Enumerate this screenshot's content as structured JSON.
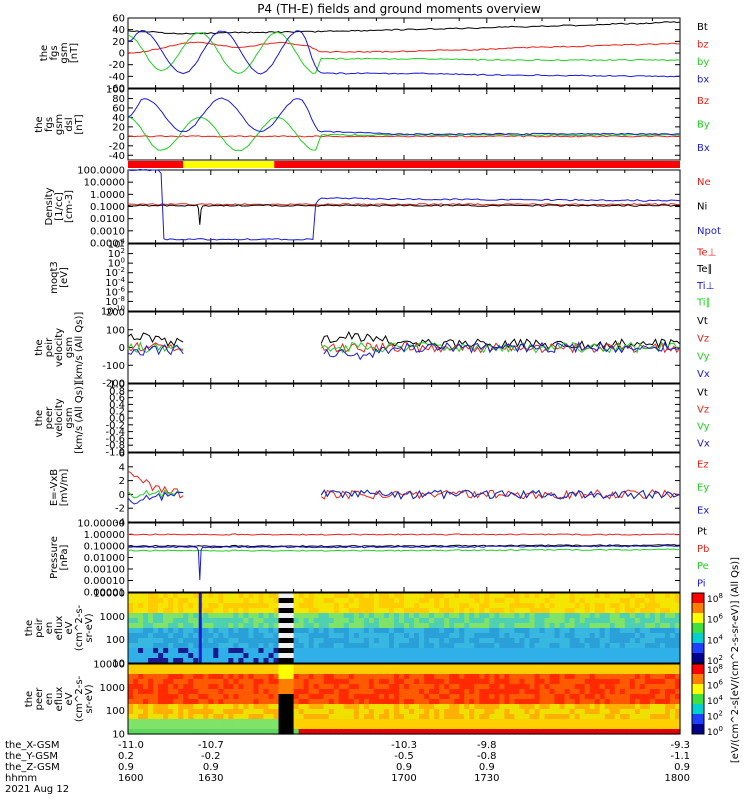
{
  "title": "P4 (TH-E) fields and ground moments overview",
  "colors": {
    "black": "#000000",
    "red": "#e8231b",
    "green": "#22d022",
    "blue": "#1a1ad6",
    "bar_red": "#ff0000",
    "bar_yellow": "#ffff00"
  },
  "chart_data": [
    {
      "type": "line",
      "panel": "fgs-gsm",
      "ylabel": [
        "the",
        "fgs",
        "gsm",
        "[nT]"
      ],
      "ylim": [
        -60,
        60
      ],
      "yticks": [
        60,
        40,
        20,
        0,
        -20,
        -40,
        -60
      ],
      "series": [
        {
          "name": "Bt",
          "color": "#000000",
          "x": [
            1600,
            1620,
            1640,
            1660,
            1680,
            1700,
            1720,
            1740,
            1760,
            1780,
            1800
          ],
          "values": [
            38,
            33,
            35,
            36,
            38,
            40,
            42,
            45,
            47,
            50,
            53
          ]
        },
        {
          "name": "bz",
          "color": "#e8231b",
          "x": [
            1600,
            1625,
            1640,
            1655,
            1665,
            1670,
            1690,
            1720,
            1750,
            1780,
            1800
          ],
          "values": [
            0,
            18,
            10,
            18,
            12,
            2,
            2,
            5,
            10,
            14,
            16
          ]
        },
        {
          "name": "by",
          "color": "#22d022",
          "x": [
            1600,
            1612,
            1626,
            1640,
            1654,
            1668,
            1670,
            1700,
            1740,
            1800
          ],
          "values": [
            30,
            -30,
            35,
            -35,
            35,
            -35,
            -10,
            -10,
            -12,
            -12
          ]
        },
        {
          "name": "bx",
          "color": "#1a1ad6",
          "x": [
            1600,
            1605,
            1620,
            1634,
            1648,
            1662,
            1670,
            1700,
            1740,
            1800
          ],
          "values": [
            20,
            38,
            -35,
            38,
            -35,
            38,
            -35,
            -35,
            -38,
            -40
          ]
        }
      ]
    },
    {
      "type": "line",
      "panel": "fgs-gsm-dsl",
      "ylabel": [
        "the",
        "fgs",
        "gsm",
        "dsl",
        "[nT]"
      ],
      "ylim": [
        -50,
        100
      ],
      "yticks": [
        100,
        80,
        60,
        40,
        20,
        0,
        -20,
        -40
      ],
      "series": [
        {
          "name": "Bz",
          "color": "#e8231b",
          "x": [
            1600,
            1800
          ],
          "values": [
            0,
            0
          ]
        },
        {
          "name": "By",
          "color": "#22d022",
          "x": [
            1600,
            1612,
            1626,
            1640,
            1654,
            1668,
            1670,
            1800
          ],
          "values": [
            40,
            -30,
            40,
            -30,
            40,
            -30,
            3,
            3
          ]
        },
        {
          "name": "Bx",
          "color": "#1a1ad6",
          "x": [
            1600,
            1606,
            1620,
            1634,
            1648,
            1662,
            1670,
            1700,
            1800
          ],
          "values": [
            40,
            80,
            10,
            80,
            10,
            80,
            10,
            5,
            5
          ]
        }
      ]
    },
    {
      "type": "bar",
      "panel": "mode-bar",
      "segments": [
        {
          "x": [
            1600,
            1620
          ],
          "color": "#ff0000"
        },
        {
          "x": [
            1620,
            1653
          ],
          "color": "#ffff00"
        },
        {
          "x": [
            1653,
            1800
          ],
          "color": "#ff0000"
        }
      ]
    },
    {
      "type": "line",
      "panel": "density",
      "ylabel": [
        "Density",
        "[1/cc]",
        "[cm-3]"
      ],
      "yscale": "log",
      "ylim": [
        0.0001,
        100
      ],
      "yticks": [
        "100.0000",
        "10.0000",
        "1.0000",
        "0.1000",
        "0.0100",
        "0.0010",
        "0.0001"
      ],
      "series": [
        {
          "name": "Ne",
          "color": "#e8231b",
          "x": [
            1600,
            1650,
            1700,
            1750,
            1800
          ],
          "values": [
            0.15,
            0.15,
            0.15,
            0.15,
            0.15
          ]
        },
        {
          "name": "Ni",
          "color": "#000000",
          "x": [
            1600,
            1625,
            1626,
            1627,
            1650,
            1700,
            1750,
            1800
          ],
          "values": [
            0.12,
            0.12,
            0.003,
            0.12,
            0.12,
            0.12,
            0.12,
            0.12
          ]
        },
        {
          "name": "Npot",
          "color": "#1a1ad6",
          "x": [
            1600,
            1611,
            1613,
            1650,
            1667,
            1670,
            1700,
            1800
          ],
          "values": [
            100,
            100,
            0.0002,
            0.0002,
            0.0002,
            0.5,
            0.4,
            0.3
          ]
        }
      ]
    },
    {
      "type": "line",
      "panel": "moqt3",
      "ylabel": [
        "moqt3",
        "[eV]"
      ],
      "yscale": "log",
      "yticks": [
        "10^4",
        "10^2",
        "10^0",
        "10^-2",
        "10^-4",
        "10^-6",
        "10^-8",
        "10^-10"
      ],
      "series": [
        {
          "name": "Te⊥",
          "color": "#e8231b"
        },
        {
          "name": "Te∥",
          "color": "#000000"
        },
        {
          "name": "Ti⊥",
          "color": "#1a1ad6"
        },
        {
          "name": "Ti∥",
          "color": "#22d022"
        }
      ]
    },
    {
      "type": "line",
      "panel": "peir-velocity",
      "ylabel": [
        "the",
        "peir",
        "velocity",
        "gsm",
        "[km/s (All Qs)]"
      ],
      "ylim": [
        -200,
        200
      ],
      "yticks": [
        200,
        100,
        0,
        -100,
        -200
      ],
      "series": [
        {
          "name": "Vt",
          "color": "#000000",
          "x": [
            1600,
            1610,
            1620,
            1660,
            1680,
            1700,
            1750,
            1800
          ],
          "values": [
            80,
            40,
            20,
            20,
            70,
            20,
            20,
            20
          ]
        },
        {
          "name": "Vz",
          "color": "#e8231b",
          "x": [
            1600,
            1620,
            1660,
            1700,
            1800
          ],
          "values": [
            10,
            0,
            0,
            0,
            0
          ]
        },
        {
          "name": "Vy",
          "color": "#22d022",
          "x": [
            1600,
            1620,
            1660,
            1800
          ],
          "values": [
            0,
            0,
            0,
            0
          ]
        },
        {
          "name": "Vx",
          "color": "#1a1ad6",
          "x": [
            1600,
            1620,
            1660,
            1683,
            1700,
            1800
          ],
          "values": [
            -20,
            -10,
            0,
            -50,
            0,
            0
          ]
        }
      ]
    },
    {
      "type": "line",
      "panel": "peer-velocity",
      "ylabel": [
        "the",
        "peer",
        "velocity",
        "gsm",
        "[km/s (All Qs)]"
      ],
      "ylim": [
        -1.0,
        1.0
      ],
      "yticks": [
        "1.0",
        "0.8",
        "0.6",
        "0.4",
        "0.2",
        "0.0",
        "-0.2",
        "-0.4",
        "-0.6",
        "-0.8",
        "-1.0"
      ],
      "series": [
        {
          "name": "Vt",
          "color": "#000000"
        },
        {
          "name": "Vz",
          "color": "#e8231b"
        },
        {
          "name": "Vy",
          "color": "#22d022"
        },
        {
          "name": "Vx",
          "color": "#1a1ad6"
        }
      ]
    },
    {
      "type": "line",
      "panel": "e-field",
      "ylabel": [
        "E=-VxB",
        "[mV/m]"
      ],
      "ylim": [
        -4,
        6
      ],
      "yticks": [
        6,
        4,
        2,
        0,
        -2,
        -4
      ],
      "series": [
        {
          "name": "Ez",
          "color": "#e8231b",
          "x": [
            1600,
            1610,
            1620,
            1660,
            1700,
            1800
          ],
          "values": [
            3,
            1,
            0,
            0,
            0,
            0
          ]
        },
        {
          "name": "Ey",
          "color": "#22d022",
          "x": [
            1600,
            1620,
            1660,
            1800
          ],
          "values": [
            0,
            0,
            0,
            0
          ]
        },
        {
          "name": "Ex",
          "color": "#1a1ad6",
          "x": [
            1600,
            1620,
            1660,
            1800
          ],
          "values": [
            -1,
            0,
            0,
            0
          ]
        }
      ]
    },
    {
      "type": "line",
      "panel": "pressure",
      "ylabel": [
        "Pressure",
        "[nPa]"
      ],
      "yscale": "log",
      "yticks": [
        "10.00000",
        "1.00000",
        "0.10000",
        "0.01000",
        "0.00100",
        "0.00010",
        "0.00001"
      ],
      "series": [
        {
          "name": "Pt",
          "color": "#000000",
          "x": [
            1600,
            1700,
            1800
          ],
          "values": [
            0.1,
            0.1,
            0.12
          ]
        },
        {
          "name": "Pb",
          "color": "#e8231b",
          "x": [
            1600,
            1700,
            1800
          ],
          "values": [
            1,
            1,
            1
          ]
        },
        {
          "name": "Pe",
          "color": "#22d022",
          "x": [
            1600,
            1700,
            1800
          ],
          "values": [
            0.04,
            0.04,
            0.05
          ]
        },
        {
          "name": "Pi",
          "color": "#1a1ad6",
          "x": [
            1600,
            1625,
            1626,
            1627,
            1700,
            1800
          ],
          "values": [
            0.08,
            0.08,
            0.0001,
            0.08,
            0.08,
            0.1
          ]
        }
      ]
    },
    {
      "type": "heatmap",
      "panel": "peir-eflux",
      "ylabel": [
        "the",
        "peir",
        "en",
        "eflux",
        "eV",
        "(cm^2-s-",
        "sr-eV)"
      ],
      "yscale": "log",
      "yticks": [
        "10000",
        "1000",
        "100",
        "10"
      ]
    },
    {
      "type": "heatmap",
      "panel": "peer-eflux",
      "ylabel": [
        "the",
        "peer",
        "en",
        "eflux",
        "eV",
        "(cm^2-s-",
        "sr-eV)"
      ],
      "yscale": "log",
      "yticks": [
        "10000",
        "1000",
        "100",
        "10"
      ]
    },
    {
      "type": "heatmap",
      "panel": "colorbars",
      "colorbar_label": "[eV/(cm^2-s[eV/(cm^2-s-sr-eV)] (All Qs)]",
      "colorbar_top_ticks": [
        "10^8",
        "10^6",
        "10^4",
        "10^2"
      ],
      "colorbar_bottom_ticks": [
        "10^8",
        "10^6",
        "10^4",
        "10^2",
        "10^0"
      ]
    }
  ],
  "x_axis": {
    "rows": [
      {
        "label": "the_X-GSM",
        "values": [
          "-11.0",
          "-10.7",
          "-10.3",
          "-9.8",
          "-9.3"
        ]
      },
      {
        "label": "the_Y-GSM",
        "values": [
          "0.2",
          "-0.2",
          "-0.5",
          "-0.8",
          "-1.1"
        ]
      },
      {
        "label": "the_Z-GSM",
        "values": [
          "0.9",
          "0.9",
          "0.9",
          "0.9",
          "0.9"
        ]
      },
      {
        "label": "hhmm",
        "values": [
          "1600",
          "1630",
          "1700",
          "1730",
          "1800"
        ]
      }
    ],
    "date": "2021 Aug 12"
  }
}
